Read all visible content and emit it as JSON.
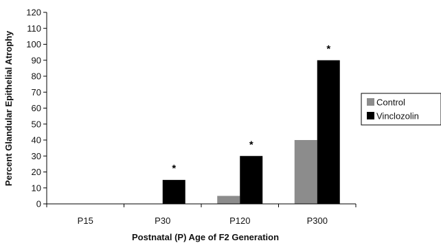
{
  "chart_data": {
    "type": "bar",
    "title": "",
    "xlabel": "Postnatal (P) Age of F2 Generation",
    "ylabel": "Percent Glandular Epithelial Atrophy",
    "categories": [
      "P15",
      "P30",
      "P120",
      "P300"
    ],
    "ylim": [
      0,
      120
    ],
    "yticks": [
      0,
      10,
      20,
      30,
      40,
      50,
      60,
      70,
      80,
      90,
      100,
      110,
      120
    ],
    "grid": false,
    "legend": "right",
    "series": [
      {
        "name": "Control",
        "color": "#8c8c8c",
        "values": [
          0,
          0,
          5,
          40
        ]
      },
      {
        "name": "Vinclozolin",
        "color": "#000000",
        "values": [
          0,
          15,
          30,
          90
        ]
      }
    ],
    "annotations": [
      {
        "category": "P30",
        "series": "Vinclozolin",
        "text": "*"
      },
      {
        "category": "P120",
        "series": "Vinclozolin",
        "text": "*"
      },
      {
        "category": "P300",
        "series": "Vinclozolin",
        "text": "*"
      }
    ]
  }
}
